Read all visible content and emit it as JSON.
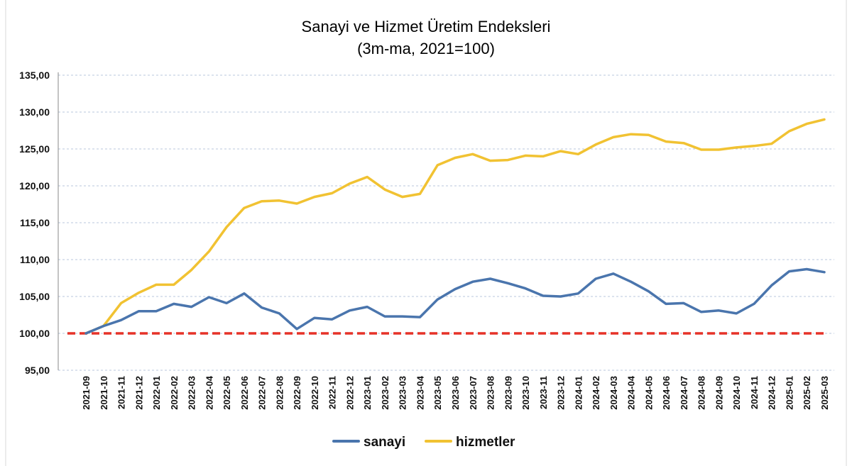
{
  "chart_data": {
    "type": "line",
    "title": "Sanayi ve Hizmet Üretim Endeksleri",
    "subtitle": "(3m-ma, 2021=100)",
    "ylim": [
      95,
      135
    ],
    "yticks": [
      "95,00",
      "100,00",
      "105,00",
      "110,00",
      "115,00",
      "120,00",
      "125,00",
      "130,00",
      "135,00"
    ],
    "grid": true,
    "legend_position": "bottom",
    "reference_line": {
      "value": 100,
      "color": "#e63228",
      "style": "dashed"
    },
    "categories": [
      "2021-09",
      "2021-10",
      "2021-11",
      "2021-12",
      "2022-01",
      "2022-02",
      "2022-03",
      "2022-04",
      "2022-05",
      "2022-06",
      "2022-07",
      "2022-08",
      "2022-09",
      "2022-10",
      "2022-11",
      "2022-12",
      "2023-01",
      "2023-02",
      "2023-03",
      "2023-04",
      "2023-05",
      "2023-06",
      "2023-07",
      "2023-08",
      "2023-09",
      "2023-10",
      "2023-11",
      "2023-12",
      "2024-01",
      "2024-02",
      "2024-03",
      "2024-04",
      "2024-05",
      "2024-06",
      "2024-07",
      "2024-08",
      "2024-09",
      "2024-10",
      "2024-11",
      "2024-12",
      "2025-01",
      "2025-02",
      "2025-03"
    ],
    "series": [
      {
        "name": "sanayi",
        "color": "#4a75ad",
        "values": [
          100.0,
          101.0,
          101.8,
          103.0,
          103.0,
          104.0,
          103.6,
          104.9,
          104.1,
          105.4,
          103.5,
          102.7,
          100.6,
          102.1,
          101.9,
          103.1,
          103.6,
          102.3,
          102.3,
          102.2,
          104.6,
          106.0,
          107.0,
          107.4,
          106.8,
          106.1,
          105.1,
          105.0,
          105.4,
          107.4,
          108.1,
          107.0,
          105.7,
          104.0,
          104.1,
          102.9,
          103.1,
          102.7,
          104.0,
          106.5,
          108.4,
          108.7,
          108.3
        ]
      },
      {
        "name": "hizmetler",
        "color": "#f1c232",
        "values": [
          100.0,
          101.0,
          104.1,
          105.5,
          106.6,
          106.6,
          108.6,
          111.1,
          114.4,
          117.0,
          117.9,
          118.0,
          117.6,
          118.5,
          119.0,
          120.3,
          121.2,
          119.5,
          118.5,
          118.9,
          122.8,
          123.8,
          124.3,
          123.4,
          123.5,
          124.1,
          124.0,
          124.7,
          124.3,
          125.6,
          126.6,
          127.0,
          126.9,
          126.0,
          125.8,
          124.9,
          124.9,
          125.2,
          125.4,
          125.7,
          127.4,
          128.4,
          129.0
        ]
      }
    ]
  }
}
